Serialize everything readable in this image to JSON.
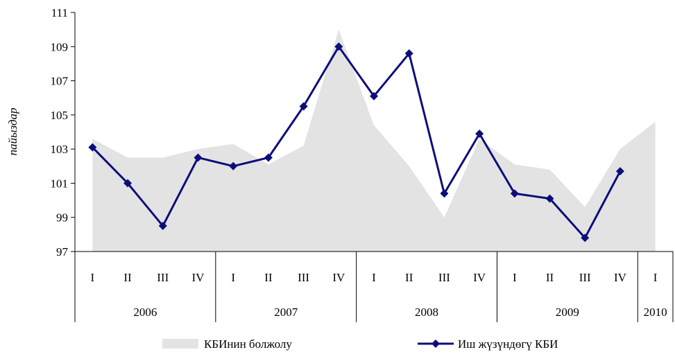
{
  "chart_data": {
    "type": "line",
    "ylabel": "пайыздар",
    "ylim": [
      97,
      111
    ],
    "yticks": [
      97,
      99,
      101,
      103,
      105,
      107,
      109,
      111
    ],
    "quarters": [
      "I",
      "II",
      "III",
      "IV",
      "I",
      "II",
      "III",
      "IV",
      "I",
      "II",
      "III",
      "IV",
      "I",
      "II",
      "III",
      "IV",
      "I"
    ],
    "years": [
      {
        "label": "2006",
        "quarters": 4
      },
      {
        "label": "2007",
        "quarters": 4
      },
      {
        "label": "2008",
        "quarters": 4
      },
      {
        "label": "2009",
        "quarters": 4
      },
      {
        "label": "2010",
        "quarters": 1
      }
    ],
    "series": [
      {
        "name": "КБИнин болжолу",
        "kind": "area",
        "color": "#e3e3e3",
        "values": [
          103.6,
          102.5,
          102.5,
          103.0,
          103.3,
          102.1,
          103.2,
          110.0,
          104.4,
          102.0,
          99.0,
          103.6,
          102.1,
          101.8,
          99.6,
          103.0,
          104.6
        ]
      },
      {
        "name": "Иш жүзүндөгү КБИ",
        "kind": "line",
        "color": "#0d0d7a",
        "values": [
          103.1,
          101.0,
          98.5,
          102.5,
          102.0,
          102.5,
          105.5,
          109.0,
          106.1,
          108.6,
          100.4,
          103.9,
          100.4,
          100.1,
          97.8,
          101.7,
          null
        ]
      }
    ],
    "legend_position": "bottom"
  }
}
